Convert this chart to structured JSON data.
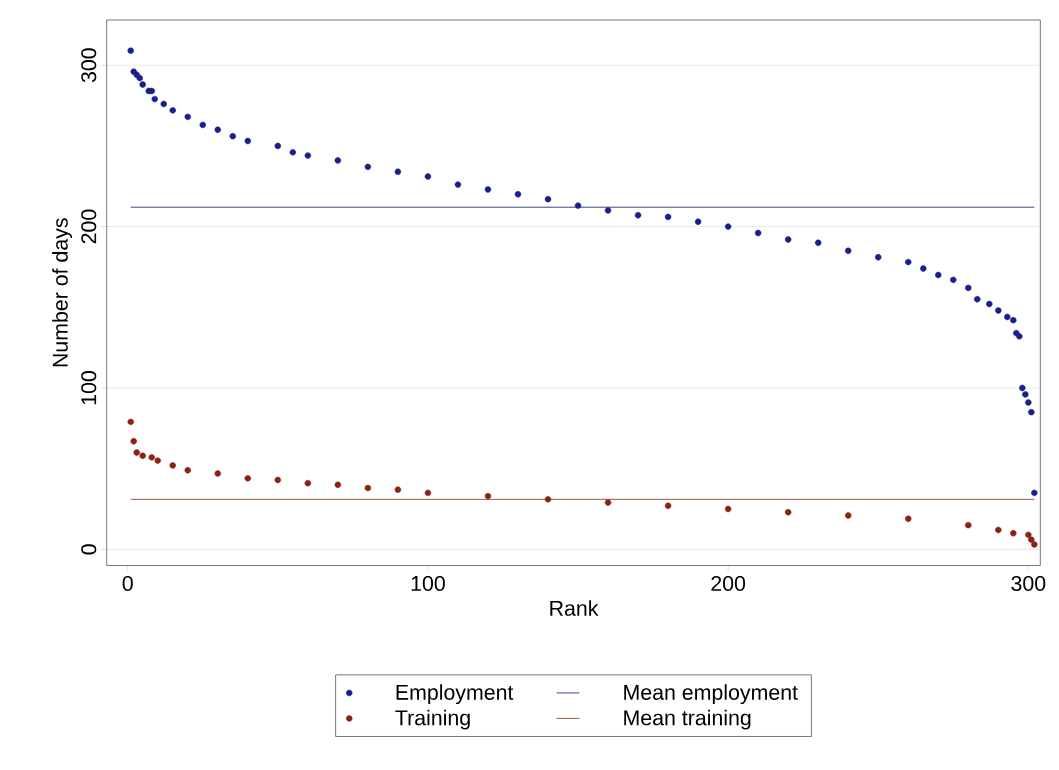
{
  "chart_data": {
    "type": "scatter",
    "xlabel": "Rank",
    "ylabel": "Number of days",
    "xlim": [
      -7,
      304
    ],
    "ylim": [
      -10,
      328
    ],
    "xticks": [
      0,
      100,
      200,
      300
    ],
    "yticks": [
      0,
      100,
      200,
      300
    ],
    "grid": "y",
    "legend": "bottom",
    "series": [
      {
        "name": "Employment",
        "color": "#1b1f8a",
        "marker": "circle",
        "x": [
          1,
          2,
          3,
          4,
          5,
          7,
          8,
          9,
          12,
          15,
          20,
          25,
          30,
          35,
          40,
          50,
          55,
          60,
          70,
          80,
          90,
          100,
          110,
          120,
          130,
          140,
          150,
          160,
          170,
          180,
          190,
          200,
          210,
          220,
          230,
          240,
          250,
          260,
          265,
          270,
          275,
          280,
          283,
          287,
          290,
          293,
          295,
          296,
          297,
          298,
          299,
          300,
          301,
          302
        ],
        "values": [
          309,
          296,
          294,
          292,
          288,
          284,
          284,
          279,
          276,
          272,
          268,
          263,
          260,
          256,
          253,
          250,
          246,
          244,
          241,
          237,
          234,
          231,
          226,
          223,
          220,
          217,
          213,
          210,
          207,
          206,
          203,
          200,
          196,
          192,
          190,
          185,
          181,
          178,
          174,
          170,
          167,
          162,
          155,
          152,
          148,
          144,
          142,
          134,
          132,
          100,
          96,
          91,
          85,
          35
        ]
      },
      {
        "name": "Mean employment",
        "type": "line",
        "color": "#2e3a87",
        "x": [
          1,
          302
        ],
        "values": [
          212,
          212
        ]
      },
      {
        "name": "Training",
        "color": "#8b2314",
        "marker": "circle",
        "x": [
          1,
          2,
          3,
          5,
          8,
          10,
          15,
          20,
          30,
          40,
          50,
          60,
          70,
          80,
          90,
          100,
          120,
          140,
          160,
          180,
          200,
          220,
          240,
          260,
          280,
          290,
          295,
          300,
          301,
          302
        ],
        "values": [
          79,
          67,
          60,
          58,
          57,
          55,
          52,
          49,
          47,
          44,
          43,
          41,
          40,
          38,
          37,
          35,
          33,
          31,
          29,
          27,
          25,
          23,
          21,
          19,
          15,
          12,
          10,
          9,
          6,
          3
        ]
      },
      {
        "name": "Mean training",
        "type": "line",
        "color": "#a0473b",
        "x": [
          1,
          302
        ],
        "values": [
          31,
          31
        ]
      }
    ]
  }
}
